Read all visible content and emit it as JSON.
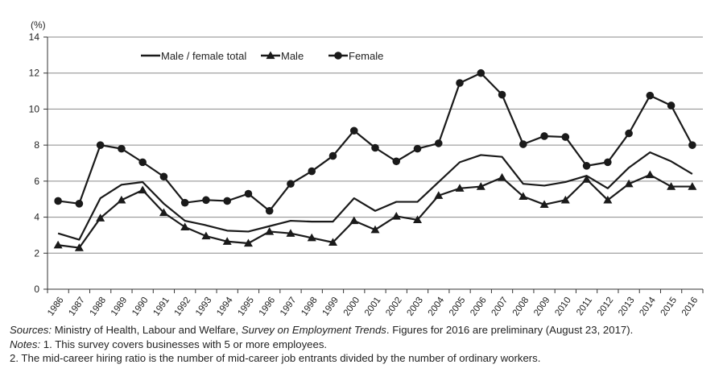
{
  "chart_data": {
    "type": "line",
    "ylabel": "(%)",
    "ylim": [
      0,
      14
    ],
    "yticks": [
      0,
      2,
      4,
      6,
      8,
      10,
      12,
      14
    ],
    "grid": true,
    "legend_position": "top-left",
    "categories": [
      "1986",
      "1987",
      "1988",
      "1989",
      "1990",
      "1991",
      "1992",
      "1993",
      "1994",
      "1995",
      "1996",
      "1997",
      "1998",
      "1999",
      "2000",
      "2001",
      "2002",
      "2003",
      "2004",
      "2005",
      "2006",
      "2007",
      "2008",
      "2009",
      "2010",
      "2011",
      "2012",
      "2013",
      "2014",
      "2015",
      "2016"
    ],
    "series": [
      {
        "name": "Male / female total",
        "marker": "none",
        "values": [
          3.1,
          2.75,
          5.05,
          5.8,
          5.95,
          4.75,
          3.8,
          3.55,
          3.25,
          3.2,
          3.5,
          3.8,
          3.75,
          3.75,
          5.05,
          4.35,
          4.85,
          4.85,
          5.95,
          7.05,
          7.45,
          7.35,
          5.85,
          5.75,
          5.95,
          6.3,
          5.6,
          6.75,
          7.6,
          7.1,
          6.4
        ]
      },
      {
        "name": "Male",
        "marker": "triangle",
        "values": [
          2.45,
          2.3,
          3.95,
          4.95,
          5.5,
          4.25,
          3.45,
          2.95,
          2.65,
          2.55,
          3.2,
          3.1,
          2.85,
          2.6,
          3.8,
          3.3,
          4.05,
          3.85,
          5.2,
          5.6,
          5.7,
          6.2,
          5.15,
          4.7,
          4.95,
          6.1,
          4.95,
          5.85,
          6.35,
          5.7,
          5.7
        ]
      },
      {
        "name": "Female",
        "marker": "circle",
        "values": [
          4.9,
          4.75,
          8.0,
          7.8,
          7.05,
          6.25,
          4.8,
          4.95,
          4.9,
          5.3,
          4.35,
          5.85,
          6.55,
          7.4,
          8.8,
          7.85,
          7.1,
          7.8,
          8.1,
          11.45,
          12.0,
          10.8,
          8.05,
          8.5,
          8.45,
          6.85,
          7.05,
          8.65,
          10.75,
          10.2,
          8.0
        ]
      }
    ]
  },
  "notes": {
    "sources_label": "Sources:",
    "sources_text1": " Ministry of Health, Labour and Welfare, ",
    "sources_title": "Survey on Employment Trends",
    "sources_text2": ". Figures for 2016 are preliminary (August 23, 2017).",
    "notes_label": "Notes:",
    "note1": " 1. This survey covers businesses with 5 or more employees.",
    "note2": "2. The mid-career hiring ratio is the number of mid-career job entrants divided by the number of ordinary workers."
  }
}
